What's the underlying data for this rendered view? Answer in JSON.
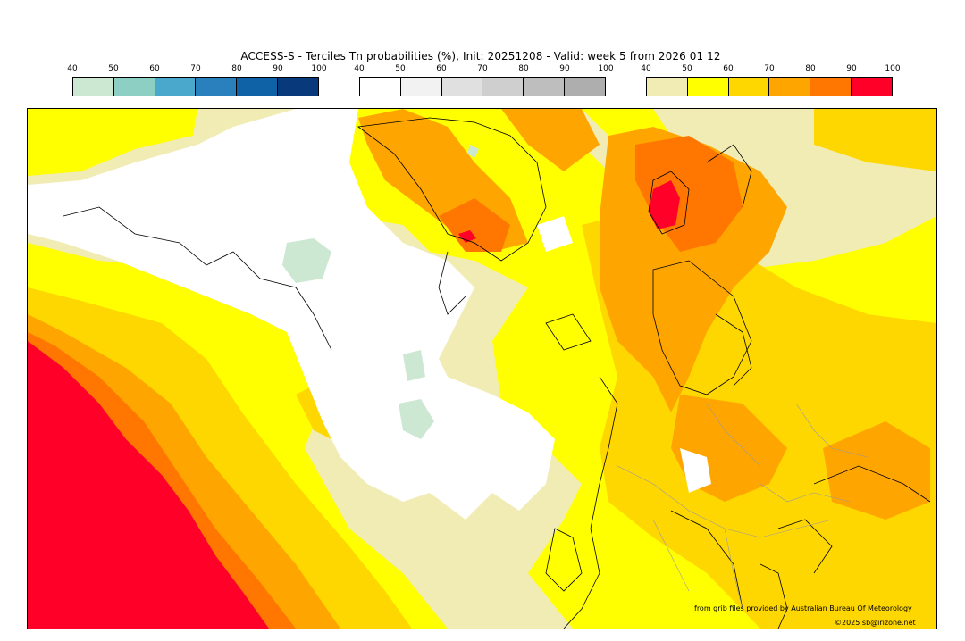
{
  "title": "ACCESS-S - Terciles Tn probabilities (%), Init: 20251208 - Valid: week 5 from 2026 01 12",
  "legends": [
    {
      "ticks": [
        "40",
        "50",
        "60",
        "70",
        "80",
        "90",
        "100"
      ],
      "colors": [
        "#cce8d2",
        "#8ecfc4",
        "#4aa8cd",
        "#2a80bc",
        "#0f62a6",
        "#08397a"
      ]
    },
    {
      "ticks": [
        "40",
        "50",
        "60",
        "70",
        "80",
        "90",
        "100"
      ],
      "colors": [
        "#ffffff",
        "#f2f2f2",
        "#e0e0e0",
        "#cfcfcf",
        "#bebebe",
        "#aeaeae"
      ]
    },
    {
      "ticks": [
        "40",
        "50",
        "60",
        "70",
        "80",
        "90",
        "100"
      ],
      "colors": [
        "#f0ecb4",
        "#ffff00",
        "#ffd700",
        "#ffa500",
        "#ff7700",
        "#ff0028"
      ]
    }
  ],
  "credits": {
    "source": "from grib files provided by Australian Bureau Of Meteorology",
    "copyright": "©2025 sb@irizone.net"
  }
}
